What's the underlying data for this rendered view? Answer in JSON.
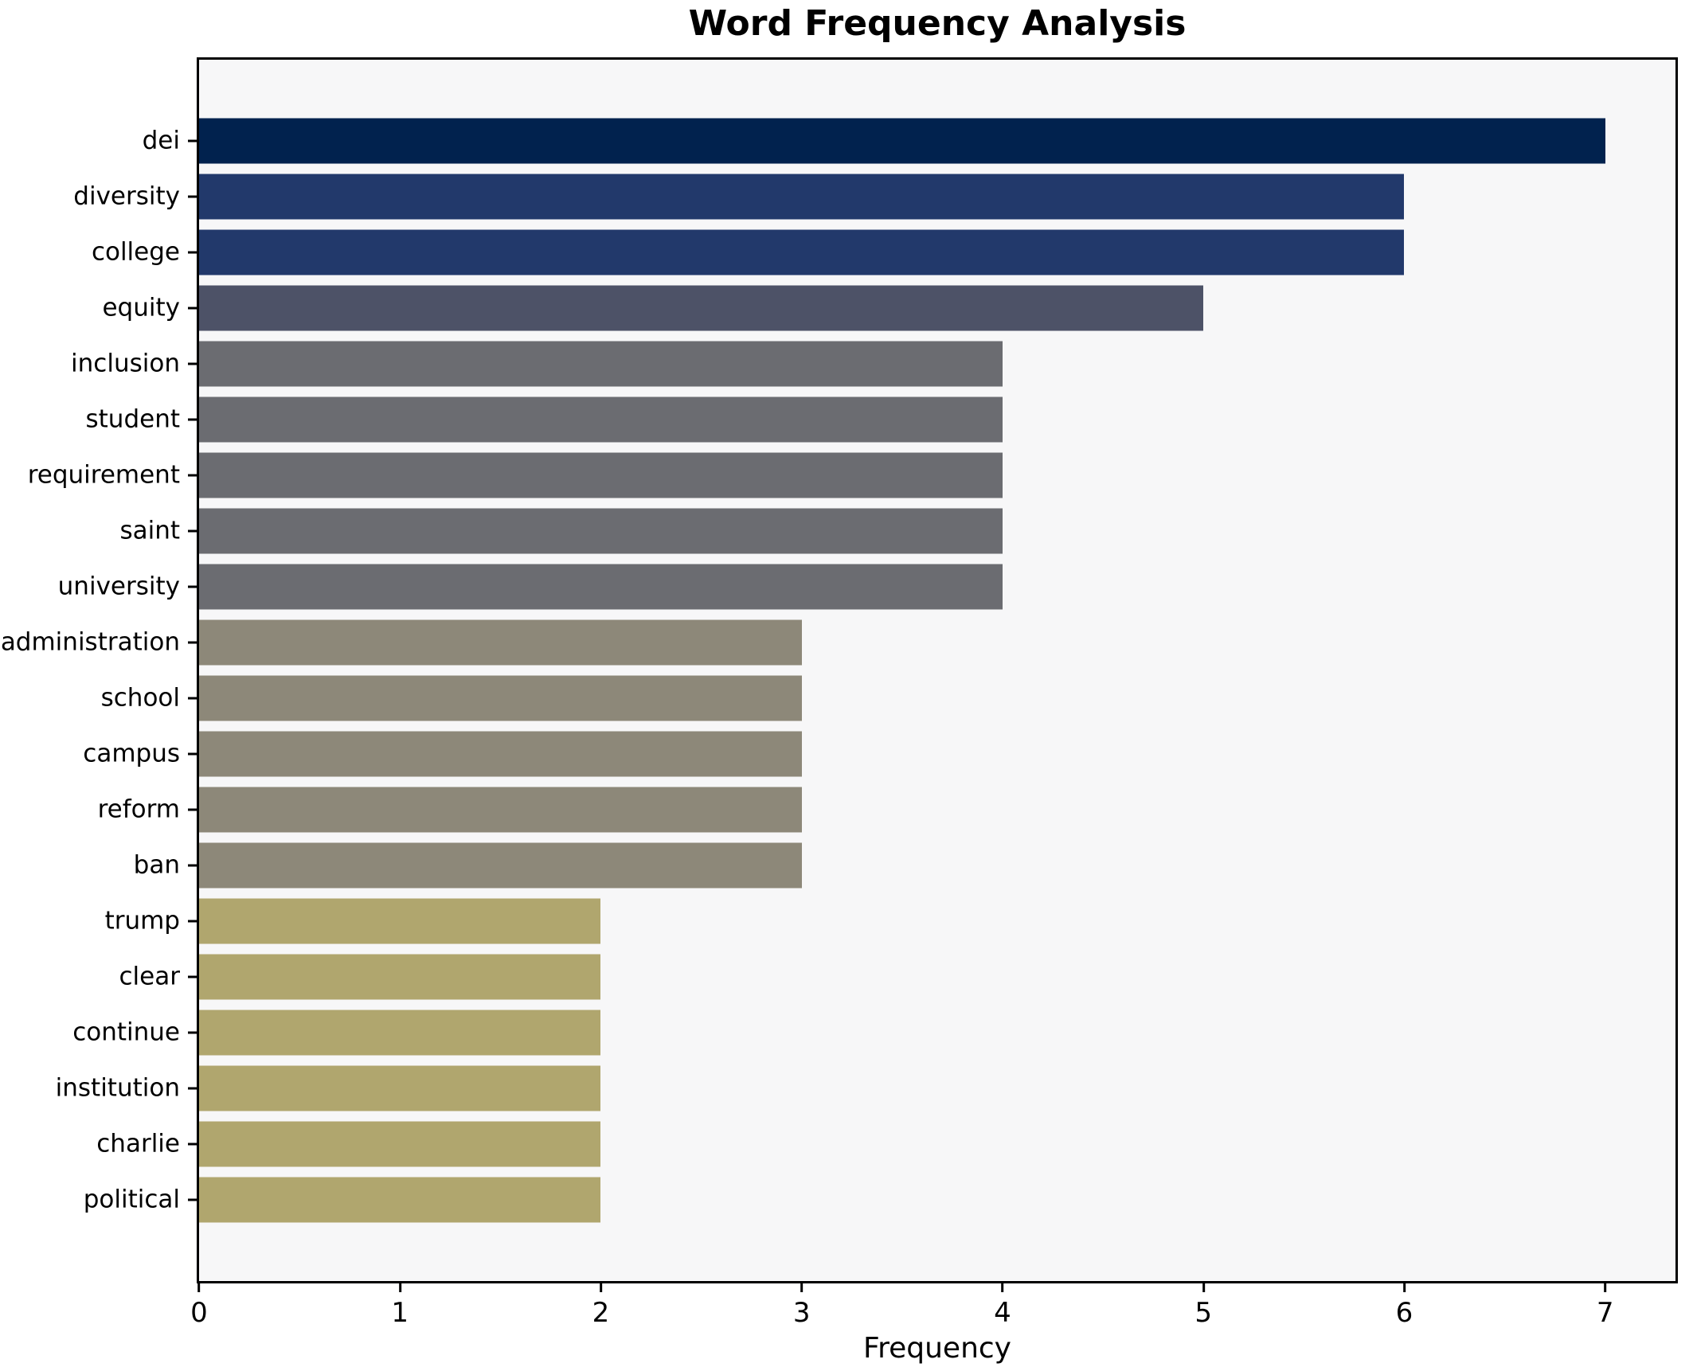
{
  "figure": {
    "background": "#ffffff",
    "plot_background": "#f7f7f8",
    "spine_color": "#000000"
  },
  "chart_data": {
    "type": "bar",
    "orientation": "horizontal",
    "title": "Word Frequency Analysis",
    "xlabel": "Frequency",
    "ylabel": "",
    "xlim": [
      0,
      7.35
    ],
    "xticks": [
      0,
      1,
      2,
      3,
      4,
      5,
      6,
      7
    ],
    "grid": false,
    "legend_position": "none",
    "colormap": "cividis",
    "categories": [
      "dei",
      "diversity",
      "college",
      "equity",
      "inclusion",
      "student",
      "requirement",
      "saint",
      "university",
      "administration",
      "school",
      "campus",
      "reform",
      "ban",
      "trump",
      "clear",
      "continue",
      "institution",
      "charlie",
      "political"
    ],
    "values": [
      7,
      6,
      6,
      5,
      4,
      4,
      4,
      4,
      4,
      3,
      3,
      3,
      3,
      3,
      2,
      2,
      2,
      2,
      2,
      2
    ],
    "bar_colors": [
      "#01224e",
      "#22396b",
      "#22396b",
      "#4d5267",
      "#6b6c71",
      "#6b6c71",
      "#6b6c71",
      "#6b6c71",
      "#6b6c71",
      "#8d8879",
      "#8d8879",
      "#8d8879",
      "#8d8879",
      "#8d8879",
      "#b0a66e",
      "#b0a66e",
      "#b0a66e",
      "#b0a66e",
      "#b0a66e",
      "#b0a66e"
    ]
  }
}
